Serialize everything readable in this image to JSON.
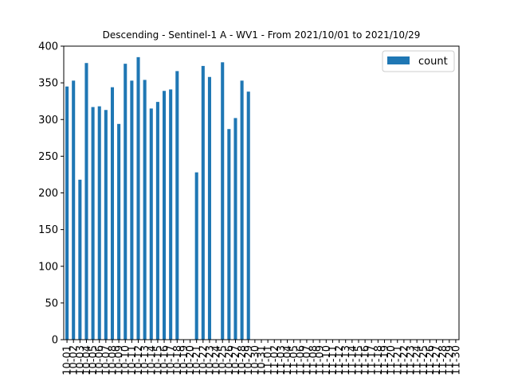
{
  "chart_data": {
    "type": "bar",
    "title": "Descending - Sentinel-1 A - WV1 - From 2021/10/01 to 2021/10/29",
    "xlabel": "",
    "ylabel": "",
    "ylim": [
      0,
      400
    ],
    "yticks": [
      0,
      50,
      100,
      150,
      200,
      250,
      300,
      350,
      400
    ],
    "legend_position": "top-right",
    "grid": false,
    "categories": [
      "10-01",
      "10-02",
      "10-03",
      "10-04",
      "10-05",
      "10-06",
      "10-07",
      "10-08",
      "10-09",
      "10-10",
      "10-11",
      "10-12",
      "10-13",
      "10-14",
      "10-15",
      "10-16",
      "10-17",
      "10-18",
      "10-19",
      "10-20",
      "10-21",
      "10-22",
      "10-23",
      "10-24",
      "10-25",
      "10-26",
      "10-27",
      "10-28",
      "10-29",
      "10-30",
      "10-31",
      "11-01",
      "11-02",
      "11-03",
      "11-04",
      "11-05",
      "11-06",
      "11-07",
      "11-08",
      "11-09",
      "11-10",
      "11-11",
      "11-12",
      "11-13",
      "11-14",
      "11-15",
      "11-16",
      "11-17",
      "11-18",
      "11-19",
      "11-20",
      "11-21",
      "11-22",
      "11-23",
      "11-24",
      "11-25",
      "11-26",
      "11-27",
      "11-28",
      "11-29",
      "11-30"
    ],
    "series": [
      {
        "name": "count",
        "color": "#1f77b4",
        "values": [
          345,
          353,
          218,
          377,
          317,
          318,
          313,
          344,
          294,
          376,
          353,
          385,
          354,
          315,
          324,
          339,
          341,
          366,
          0,
          0,
          228,
          373,
          358,
          0,
          378,
          287,
          302,
          353,
          338,
          0,
          0,
          0,
          0,
          0,
          0,
          0,
          0,
          0,
          0,
          0,
          0,
          0,
          0,
          0,
          0,
          0,
          0,
          0,
          0,
          0,
          0,
          0,
          0,
          0,
          0,
          0,
          0,
          0,
          0,
          0,
          0
        ]
      }
    ]
  }
}
